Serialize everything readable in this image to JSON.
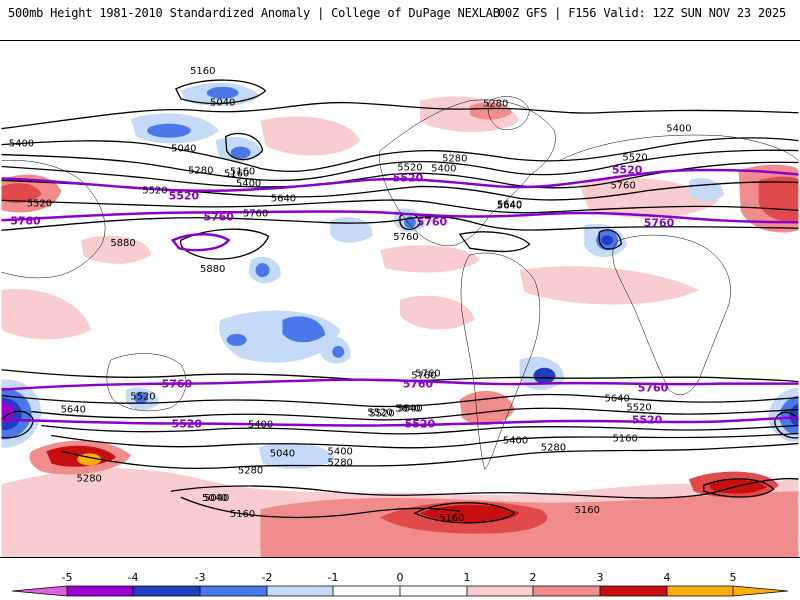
{
  "header": {
    "title": "500mb Height 1981-2010 Standardized Anomaly | College of DuPage NEXLAB",
    "model_run": "00Z GFS | F156 Valid: 12Z SUN NOV 23 2025"
  },
  "colors": {
    "neg5": "#e060e0",
    "neg4": "#9a00d0",
    "neg3": "#1f3fc0",
    "neg2": "#4a78e8",
    "neg1": "#c4daf6",
    "zero": "#ffffff",
    "pos1": "#f9cccf",
    "pos2": "#f08c8c",
    "pos3": "#e04a4a",
    "pos4": "#c80f0f",
    "pos5": "#ffae0d",
    "contour": "#000000",
    "key_contour": "#8a00c8"
  },
  "colorbar": {
    "ticks": [
      "-5",
      "-4",
      "-3",
      "-2",
      "-1",
      "0",
      "1",
      "2",
      "3",
      "4",
      "5"
    ]
  },
  "contour_labels": {
    "black": [
      "5160",
      "5040",
      "5040",
      "5160",
      "5280",
      "5400",
      "5400",
      "5520",
      "5640",
      "5760",
      "5880",
      "5880",
      "5520",
      "5400",
      "5280",
      "5280",
      "5400",
      "5520",
      "5640",
      "5760",
      "5160",
      "5640",
      "5520",
      "5400",
      "5640",
      "5520",
      "5400",
      "5280",
      "5160",
      "5040",
      "5040",
      "5160",
      "5280",
      "5760",
      "5640",
      "5520",
      "5400",
      "5280",
      "5160",
      "5160",
      "5280",
      "5040",
      "5640",
      "5520",
      "5520",
      "5640",
      "5760",
      "5760"
    ],
    "purple": [
      "5760",
      "5520",
      "5760",
      "5520",
      "5760",
      "5520",
      "5760",
      "5760",
      "5520",
      "5760",
      "5520",
      "5760",
      "5520"
    ]
  }
}
